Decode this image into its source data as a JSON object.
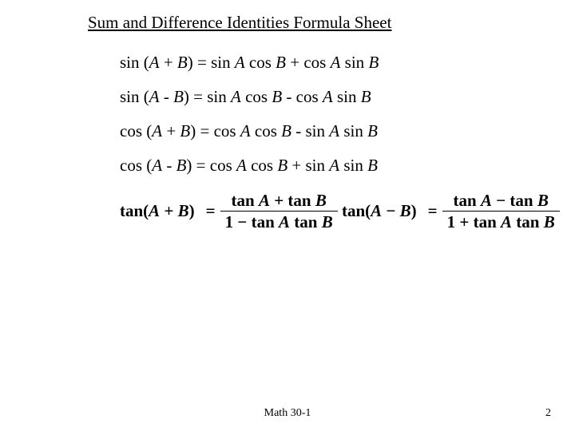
{
  "title": "Sum and Difference Identities  Formula Sheet",
  "text_color": "#000000",
  "background_color": "#ffffff",
  "title_fontsize": 21,
  "body_fontsize": 21,
  "footer_fontsize": 14,
  "formulas_plain": [
    {
      "prefix": "sin (",
      "var1": "A",
      "op_inner": " + ",
      "var2": "B",
      "rhs_prefix": ") = sin ",
      "r1": "A",
      "mid1": " cos ",
      "r2": "B",
      "op_outer": " + cos ",
      "r3": "A",
      "mid2": " sin ",
      "r4": "B"
    },
    {
      "prefix": "sin (",
      "var1": "A",
      "op_inner": " - ",
      "var2": "B",
      "rhs_prefix": ") = sin ",
      "r1": "A",
      "mid1": " cos ",
      "r2": "B",
      "op_outer": " - cos ",
      "r3": "A",
      "mid2": " sin ",
      "r4": "B"
    },
    {
      "prefix": "cos (",
      "var1": "A",
      "op_inner": " + ",
      "var2": "B",
      "rhs_prefix": ") = cos ",
      "r1": "A",
      "mid1": " cos ",
      "r2": "B",
      "op_outer": " - sin ",
      "r3": "A",
      "mid2": " sin ",
      "r4": "B"
    },
    {
      "prefix": "cos (",
      "var1": "A",
      "op_inner": " - ",
      "var2": "B",
      "rhs_prefix": ") = cos ",
      "r1": "A",
      "mid1": " cos ",
      "r2": "B",
      "op_outer": " + sin ",
      "r3": "A",
      "mid2": " sin ",
      "r4": "B"
    }
  ],
  "formulas_frac": [
    {
      "lhs_fn": "tan(",
      "lhs_a": "A",
      "lhs_op": " + ",
      "lhs_b": "B",
      "lhs_close": ")",
      "eq": "=",
      "num_t1": "tan ",
      "num_a": "A",
      "num_op": " + tan ",
      "num_b": "B",
      "den_t1": "1 − tan ",
      "den_a": "A",
      "den_t2": " tan ",
      "den_b": "B"
    },
    {
      "lhs_fn": "tan(",
      "lhs_a": "A",
      "lhs_op": " − ",
      "lhs_b": "B",
      "lhs_close": ")",
      "eq": "=",
      "num_t1": "tan ",
      "num_a": "A",
      "num_op": " − tan ",
      "num_b": "B",
      "den_t1": "1 + tan ",
      "den_a": "A",
      "den_t2": " tan ",
      "den_b": "B"
    }
  ],
  "footer": {
    "center": "Math 30-1",
    "page": "2"
  }
}
